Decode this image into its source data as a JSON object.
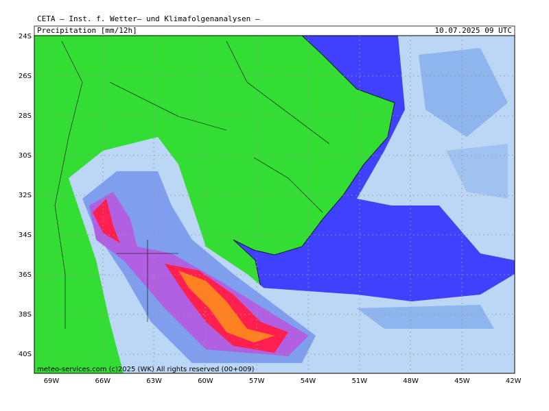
{
  "header": {
    "title": "CETA — Inst. f. Wetter— und Klimafolgenanalysen —",
    "field": "Precipitation [mm/12h]",
    "time": "10.07.2025 09 UTC"
  },
  "lat_labels": [
    "24S",
    "26S",
    "28S",
    "30S",
    "32S",
    "34S",
    "36S",
    "38S",
    "40S"
  ],
  "lon_labels": [
    "69W",
    "66W",
    "63W",
    "60W",
    "57W",
    "54W",
    "51W",
    "48W",
    "45W",
    "42W"
  ],
  "footer": "meteo-services.com (c)2025 (WK) All rights reserved (00+009)"
}
